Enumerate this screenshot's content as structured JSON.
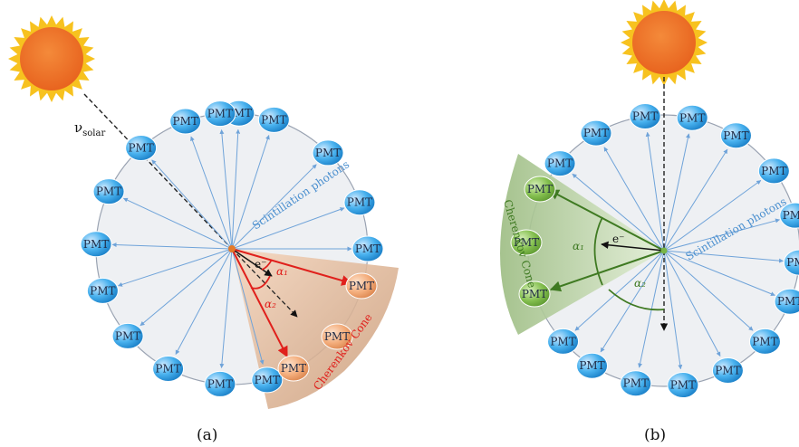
{
  "pmt_label": "PMT",
  "colors": {
    "sphere_fill": "#eef0f3",
    "sphere_stroke": "#9aa3b2",
    "pmt_blue": "#3aa9e6",
    "photon_arrow": "#6fa3d9",
    "cherenkov_red": "#e0201c",
    "cherenkov_green": "#3f7a22",
    "pmt_orange": "#f2a877",
    "pmt_green": "#7ab648"
  },
  "panel_a": {
    "caption": "(a)",
    "nu_symbol": "ν",
    "nu_subscript": "solar",
    "electron_label": "e⁻",
    "alpha1": "α₁",
    "alpha2": "α₂",
    "scintillation_label": "Scintillation photons",
    "cone_label": "Cherenkov Cone",
    "blue_pmt_count": 15,
    "cone_pmt_count": 3
  },
  "panel_b": {
    "caption": "(b)",
    "electron_label": "e⁻",
    "alpha1": "α₁",
    "alpha2": "α₂",
    "scintillation_label": "Scintillation photons",
    "cone_label": "Cherenkov Cone",
    "blue_pmt_count": 15,
    "cone_pmt_count": 3
  }
}
